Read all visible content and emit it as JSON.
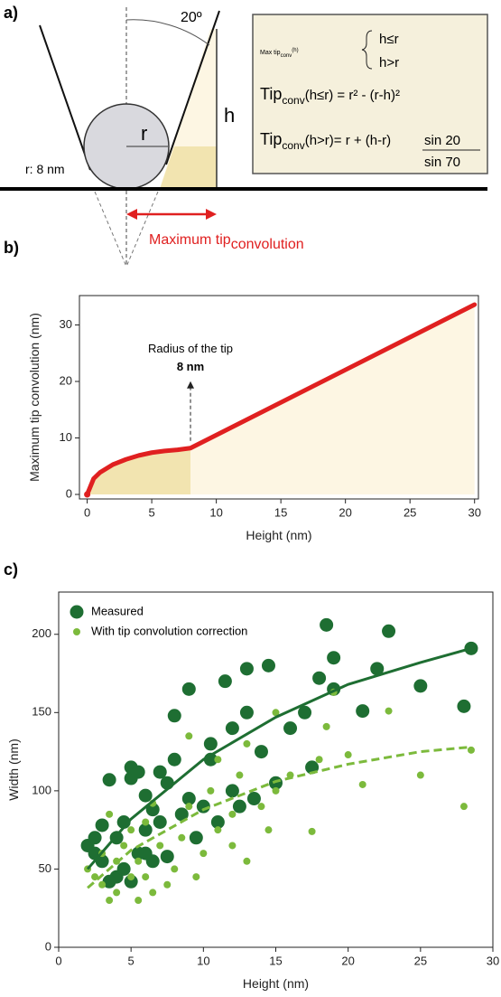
{
  "panel_labels": [
    "a)",
    "b)",
    "c)"
  ],
  "diagram": {
    "angle": "20º",
    "h": "h",
    "r": "r",
    "radius_note": "r: 8 nm",
    "arrow_label": {
      "main": "Maximum tip",
      "sub": "convolution"
    },
    "formula": {
      "header": {
        "main": "Max tip",
        "sub": "conv",
        "arg": "(h)"
      },
      "cases": [
        "h≤r",
        "h>r"
      ],
      "line1": {
        "main": "Tip",
        "sub": "conv",
        "rest": "(h≤r) = r² - (r-h)²"
      },
      "line2": {
        "main": "Tip",
        "sub": "conv",
        "rest": "(h>r)= r + (h-r)",
        "numerator": "sin 20",
        "denominator": "sin 70"
      }
    }
  },
  "chart_data": [
    {
      "type": "line",
      "xlabel": "Height (nm)",
      "ylabel": "Maximum tip convolution (nm)",
      "x": [
        0,
        0.5,
        1,
        2,
        3,
        4,
        5,
        6,
        7,
        8,
        30
      ],
      "series": [
        {
          "color": "#e02020",
          "values": [
            0,
            2.8,
            3.9,
            5.3,
            6.2,
            6.9,
            7.4,
            7.7,
            7.9,
            8.2,
            33.6
          ]
        }
      ],
      "xlim": [
        -0.6,
        30.3
      ],
      "ylim": [
        -0.8,
        35.2
      ],
      "xticks": [
        0,
        5,
        10,
        15,
        20,
        25,
        30
      ],
      "yticks": [
        0,
        10,
        20,
        30
      ],
      "area_colors": [
        "#f2e4b0",
        "#fdf6e3"
      ],
      "annotation": {
        "text": "Radius of the tip",
        "label": "8 nm",
        "x": 8
      }
    },
    {
      "type": "scatter",
      "xlabel": "Height (nm)",
      "ylabel": "Width (nm)",
      "xlim": [
        0,
        30
      ],
      "ylim": [
        0,
        227
      ],
      "xticks": [
        0,
        5,
        10,
        15,
        20,
        25,
        30
      ],
      "yticks": [
        0,
        50,
        100,
        150,
        200
      ],
      "legend": "upper left",
      "series": [
        {
          "name": "Measured",
          "color": "#1e6e32",
          "x": [
            2,
            2.5,
            3,
            3.5,
            3,
            4,
            4,
            4.5,
            5,
            5,
            5.5,
            5.5,
            6,
            6,
            6.5,
            6.5,
            7,
            7.5,
            7.5,
            8,
            8,
            8.5,
            9,
            9,
            9.5,
            10,
            10.5,
            10.5,
            11,
            11.5,
            12,
            12,
            12.5,
            13,
            13,
            13.5,
            14,
            14.5,
            15,
            16,
            17,
            17.5,
            18,
            18.5,
            19,
            19,
            21,
            22,
            22.8,
            25,
            28,
            28.5,
            3.5,
            4.5,
            5,
            6,
            2.5,
            7
          ],
          "values": [
            65,
            60,
            78,
            107,
            55,
            70,
            45,
            80,
            108,
            115,
            112,
            60,
            97,
            75,
            88,
            55,
            80,
            105,
            58,
            148,
            120,
            85,
            165,
            95,
            70,
            90,
            130,
            120,
            80,
            170,
            100,
            140,
            90,
            178,
            150,
            95,
            125,
            180,
            105,
            140,
            150,
            115,
            172,
            206,
            185,
            165,
            151,
            178,
            202,
            167,
            154,
            191,
            42,
            50,
            42,
            60,
            70,
            112
          ]
        },
        {
          "name": "With tip convolution correction",
          "color": "#7cba3c",
          "x": [
            2,
            2.5,
            3,
            3,
            3.5,
            3.5,
            4,
            4,
            4.5,
            5,
            5,
            5.5,
            5.5,
            6,
            6,
            6.5,
            6.5,
            7,
            7.5,
            8,
            8.5,
            9,
            9,
            9.5,
            10,
            10.5,
            11,
            11,
            12,
            12,
            12.5,
            13,
            13,
            14,
            14.5,
            15,
            15,
            16,
            17.5,
            18,
            18.5,
            19,
            20,
            21,
            22.8,
            25,
            28,
            28.5
          ],
          "values": [
            50,
            45,
            40,
            60,
            30,
            85,
            55,
            35,
            65,
            75,
            45,
            30,
            55,
            80,
            45,
            35,
            92,
            65,
            40,
            50,
            70,
            90,
            135,
            45,
            60,
            100,
            75,
            120,
            65,
            85,
            110,
            130,
            55,
            90,
            75,
            150,
            100,
            110,
            74,
            120,
            141,
            163,
            123,
            104,
            151,
            110,
            90,
            126
          ]
        }
      ],
      "fits": [
        {
          "color": "#1e6e32",
          "dashed": false,
          "x": [
            2,
            5,
            10,
            15,
            20,
            25,
            28.5
          ],
          "values": [
            50,
            82,
            120,
            147,
            168,
            182,
            191
          ]
        },
        {
          "color": "#7cba3c",
          "dashed": true,
          "x": [
            2,
            5,
            10,
            15,
            20,
            25,
            28.5
          ],
          "values": [
            38,
            62,
            88,
            106,
            117,
            125,
            128
          ]
        }
      ]
    }
  ]
}
